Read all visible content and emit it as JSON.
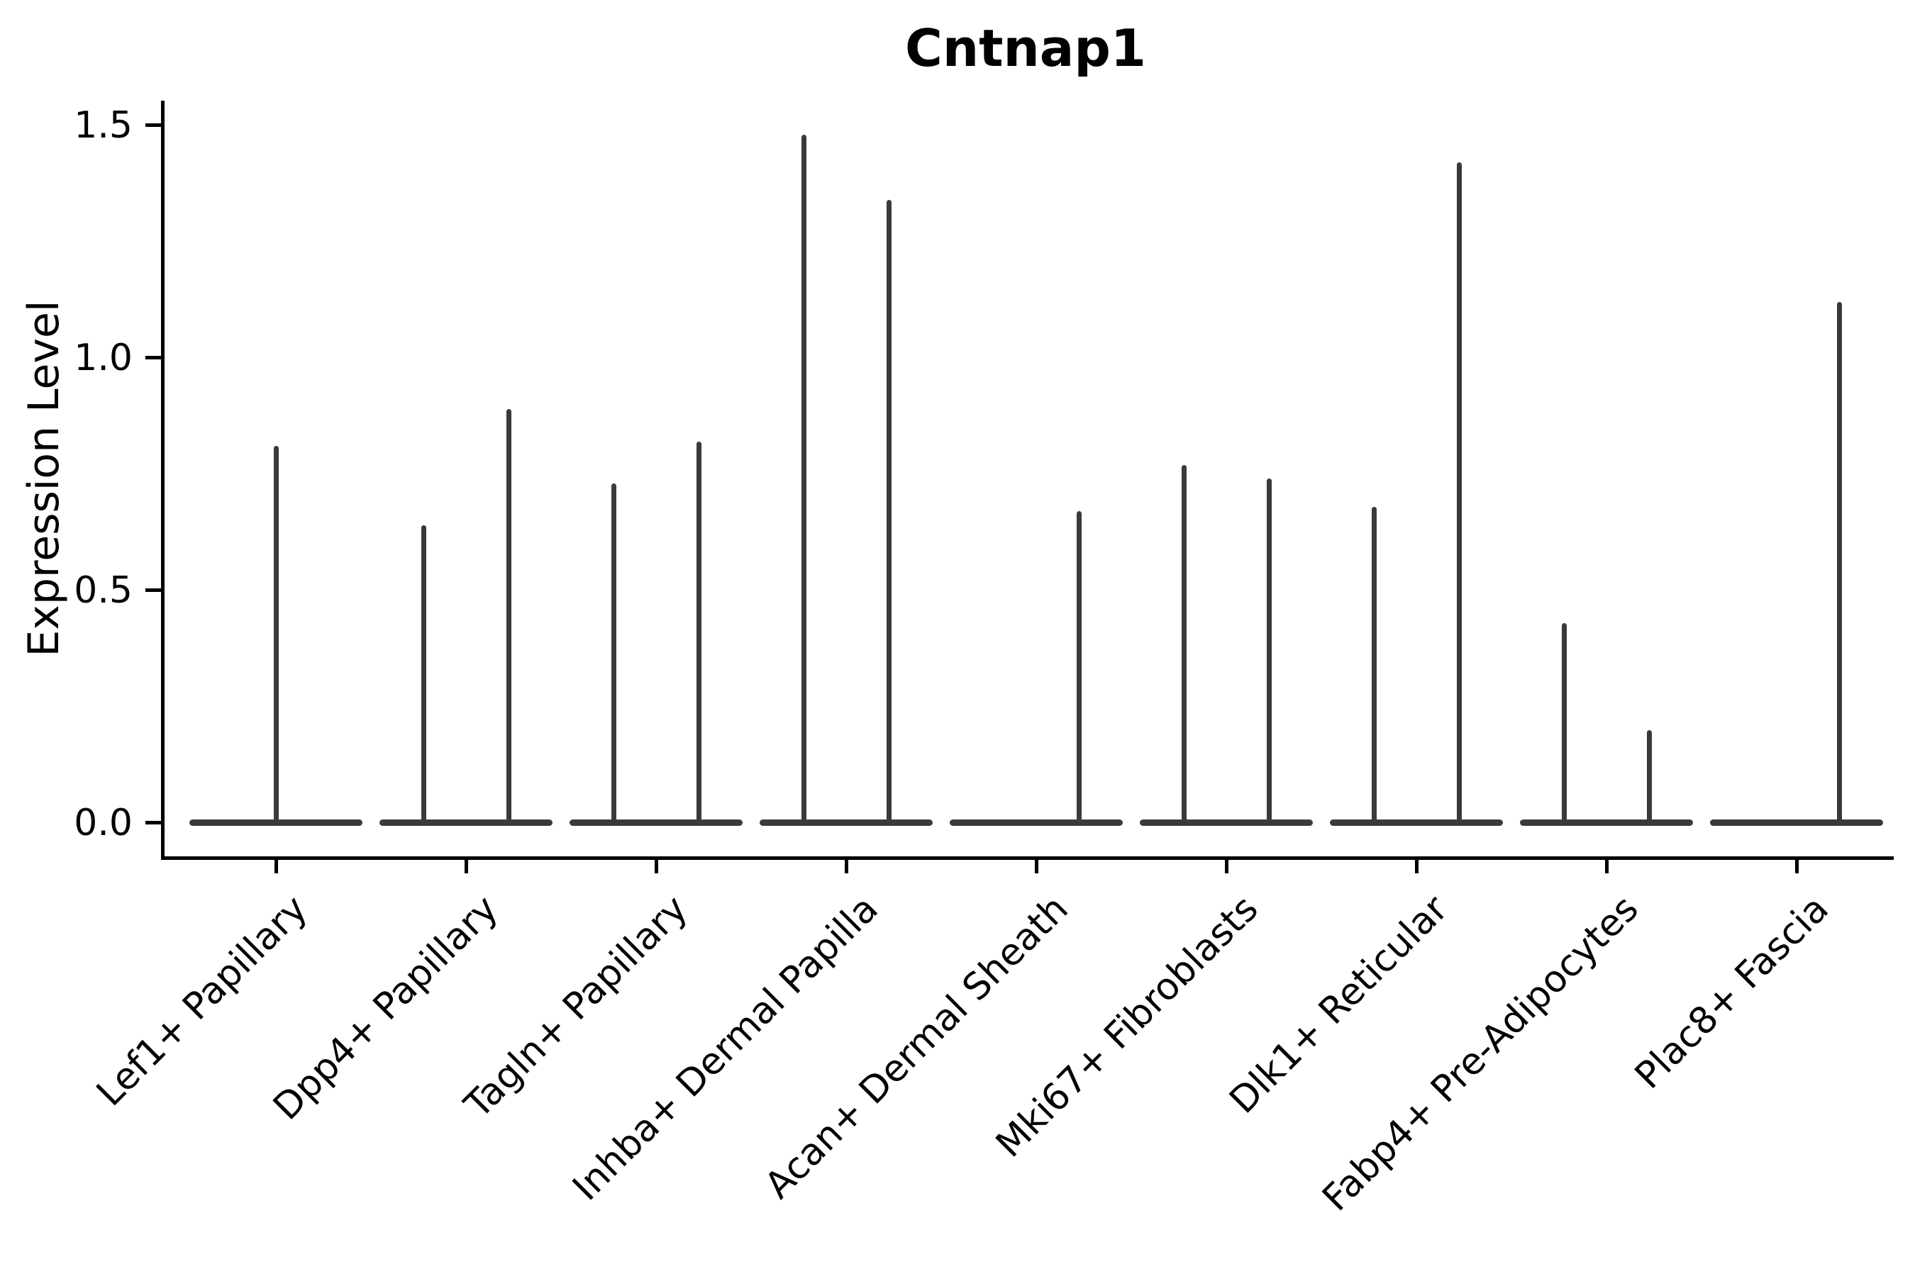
{
  "chart_data": {
    "type": "violin",
    "title": "Cntnap1",
    "ylabel": "Expression Level",
    "xlabel": "",
    "yticks": [
      0.0,
      0.5,
      1.0,
      1.5
    ],
    "ytick_labels": [
      "0.0",
      "0.5",
      "1.0",
      "1.5"
    ],
    "ylim": [
      -0.072,
      1.553
    ],
    "grid": false,
    "legend": "none",
    "line_color": "#3a3a3a",
    "axis_color": "#000000",
    "categories": [
      "Lef1+ Papillary",
      "Dpp4+ Papillary",
      "Tagln+ Papillary",
      "Inhba+ Dermal Papilla",
      "Acan+ Dermal Sheath",
      "Mki67+ Fibroblasts",
      "Dlk1+ Reticular",
      "Fabp4+ Pre-Adipocytes",
      "Plac8+ Fascia"
    ],
    "violins": [
      {
        "category": "Lef1+ Papillary",
        "baseline_value": 0.0,
        "spikes": [
          {
            "position": "center",
            "max": 0.81
          }
        ]
      },
      {
        "category": "Dpp4+ Papillary",
        "baseline_value": 0.0,
        "spikes": [
          {
            "position": "left",
            "max": 0.64
          },
          {
            "position": "right",
            "max": 0.89
          }
        ]
      },
      {
        "category": "Tagln+ Papillary",
        "baseline_value": 0.0,
        "spikes": [
          {
            "position": "left",
            "max": 0.73
          },
          {
            "position": "right",
            "max": 0.82
          }
        ]
      },
      {
        "category": "Inhba+ Dermal Papilla",
        "baseline_value": 0.0,
        "spikes": [
          {
            "position": "left",
            "max": 1.48
          },
          {
            "position": "right",
            "max": 1.34
          }
        ]
      },
      {
        "category": "Acan+ Dermal Sheath",
        "baseline_value": 0.0,
        "spikes": [
          {
            "position": "right",
            "max": 0.67
          }
        ]
      },
      {
        "category": "Mki67+ Fibroblasts",
        "baseline_value": 0.0,
        "spikes": [
          {
            "position": "left",
            "max": 0.77
          },
          {
            "position": "right",
            "max": 0.74
          }
        ]
      },
      {
        "category": "Dlk1+ Reticular",
        "baseline_value": 0.0,
        "spikes": [
          {
            "position": "left",
            "max": 0.68
          },
          {
            "position": "right",
            "max": 1.42
          }
        ]
      },
      {
        "category": "Fabp4+ Pre-Adipocytes",
        "baseline_value": 0.0,
        "spikes": [
          {
            "position": "left",
            "max": 0.43
          },
          {
            "position": "right",
            "max": 0.2
          }
        ]
      },
      {
        "category": "Plac8+ Fascia",
        "baseline_value": 0.0,
        "spikes": [
          {
            "position": "right",
            "max": 1.12
          }
        ]
      }
    ]
  }
}
